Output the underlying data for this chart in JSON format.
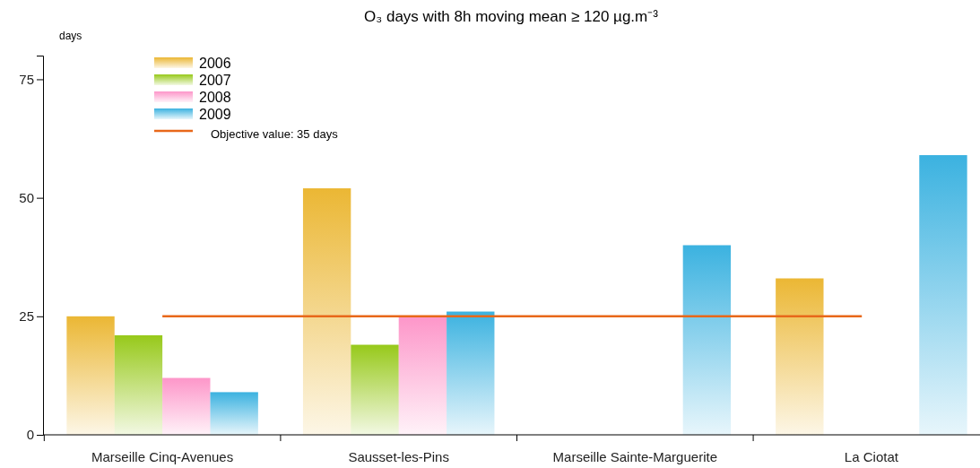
{
  "chart_data": {
    "type": "bar",
    "title": "O₃ days with 8h moving mean ≥ 120 µg.m⁻³",
    "ylabel": "days",
    "categories": [
      "Marseille Cinq-Avenues",
      "Sausset-les-Pins",
      "Marseille Sainte-Marguerite",
      "La Ciotat"
    ],
    "series": [
      {
        "name": "2006",
        "color": "#ebb734",
        "values": [
          25,
          52,
          null,
          33
        ]
      },
      {
        "name": "2007",
        "color": "#97c91a",
        "values": [
          21,
          19,
          null,
          null
        ]
      },
      {
        "name": "2008",
        "color": "#fd96c9",
        "values": [
          12,
          25,
          null,
          null
        ]
      },
      {
        "name": "2009",
        "color": "#3bb2e0",
        "values": [
          9,
          26,
          40,
          59
        ]
      }
    ],
    "ylim": [
      0,
      80
    ],
    "yticks": [
      0,
      25,
      50,
      75
    ],
    "grid": false,
    "legend": "top left",
    "ref_lines": [
      {
        "axis": "y",
        "value": 25,
        "color": "#e8681a"
      }
    ],
    "annotations": [
      "Objective value: 35 days"
    ]
  }
}
